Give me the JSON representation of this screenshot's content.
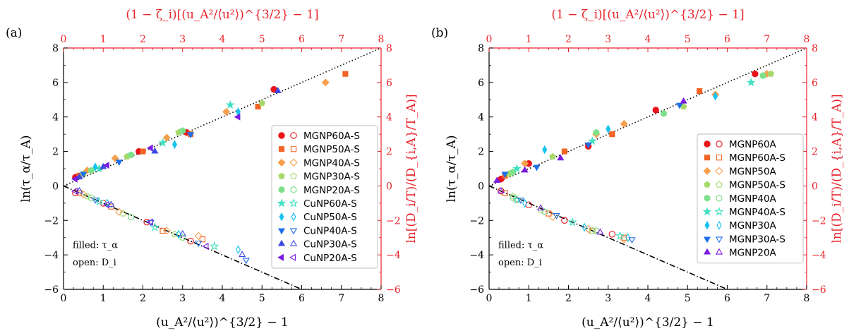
{
  "panels": [
    {
      "panel_label": "(a)",
      "x_label": "(u_A²/⟨u²⟩)^{3/2} − 1",
      "y_label_left": "ln(τ_α/τ_A)",
      "x_label_top": "(1 − ζ_i)[(u_A²/⟨u²⟩)^{3/2} − 1]",
      "y_label_right": "ln[(D_i/T)/(D_{i,A}/T_A)]",
      "annotation_filled": "filled: τ_α",
      "annotation_open": "open: D_i"
    },
    {
      "panel_label": "(b)",
      "x_label": "(u_A²/⟨u²⟩)^{3/2} − 1",
      "y_label_left": "ln(τ_α/τ_A)",
      "x_label_top": "(1 − ζ_i)[(u_A²/⟨u²⟩)^{3/2} − 1]",
      "y_label_right": "ln[(D_i/T)/(D_{i,A}/T_A)]",
      "annotation_filled": "filled: τ_α",
      "annotation_open": "open: D_i"
    }
  ],
  "colors": {
    "red_axis": "#e8232a",
    "black": "#000000",
    "series_palette": [
      "#e8141a",
      "#f26426",
      "#f6a04d",
      "#a6d96a",
      "#7ee08a",
      "#3fe0c0",
      "#16c3f0",
      "#1e6fe8",
      "#3b4ae0",
      "#7b1be0"
    ]
  },
  "chart_data": [
    {
      "type": "scatter",
      "title": "",
      "xlabel": "(u_A²/⟨u²⟩)^{3/2} − 1",
      "ylabel": "ln(τ_α/τ_A)",
      "xlabel_top": "(1 − ζ_i)[(u_A²/⟨u²⟩)^{3/2} − 1]",
      "ylabel_right": "ln[(D_i/T)/(D_{i,A}/T_A)]",
      "xlim": [
        0,
        8
      ],
      "ylim": [
        -6,
        8
      ],
      "x_ticks": [
        0,
        1,
        2,
        3,
        4,
        5,
        6,
        7,
        8
      ],
      "y_ticks": [
        -6,
        -4,
        -2,
        0,
        2,
        4,
        6,
        8
      ],
      "legend_position": "right",
      "reference_lines": [
        {
          "style": "dotted",
          "slope": 1.0
        },
        {
          "style": "dashdot",
          "slope": -1.0
        }
      ],
      "series": [
        {
          "name": "MGNP60A-S",
          "marker": "circle",
          "color": "#e8141a",
          "filled": [
            [
              0.3,
              0.5
            ],
            [
              1.9,
              2.0
            ],
            [
              3.1,
              3.1
            ],
            [
              5.3,
              5.6
            ]
          ],
          "open": [
            [
              0.3,
              -0.4
            ],
            [
              1.0,
              -1.0
            ],
            [
              2.1,
              -2.1
            ],
            [
              3.2,
              -3.2
            ]
          ]
        },
        {
          "name": "MGNP50A-S",
          "marker": "square",
          "color": "#f26426",
          "filled": [
            [
              0.4,
              0.6
            ],
            [
              2.0,
              2.0
            ],
            [
              3.2,
              3.0
            ],
            [
              4.9,
              4.6
            ],
            [
              7.1,
              6.5
            ]
          ],
          "open": [
            [
              0.4,
              -0.4
            ],
            [
              1.2,
              -1.2
            ],
            [
              2.5,
              -2.6
            ],
            [
              3.5,
              -3.1
            ]
          ]
        },
        {
          "name": "MGNP40A-S",
          "marker": "diamond",
          "color": "#f6a04d",
          "filled": [
            [
              0.6,
              0.9
            ],
            [
              1.3,
              1.6
            ],
            [
              2.6,
              2.8
            ],
            [
              4.1,
              4.3
            ],
            [
              6.6,
              6.0
            ]
          ],
          "open": [
            [
              0.5,
              -0.5
            ],
            [
              1.4,
              -1.5
            ],
            [
              2.6,
              -2.6
            ],
            [
              3.4,
              -2.9
            ]
          ]
        },
        {
          "name": "MGNP30A-S",
          "marker": "pentagon",
          "color": "#a6d96a",
          "filled": [
            [
              0.5,
              0.7
            ],
            [
              1.6,
              1.7
            ],
            [
              2.9,
              3.1
            ],
            [
              5.0,
              4.8
            ]
          ],
          "open": [
            [
              0.6,
              -0.6
            ],
            [
              1.5,
              -1.6
            ],
            [
              2.8,
              -2.8
            ]
          ]
        },
        {
          "name": "MGNP20A-S",
          "marker": "hexagon",
          "color": "#7ee08a",
          "filled": [
            [
              0.7,
              0.9
            ],
            [
              1.7,
              1.8
            ],
            [
              3.0,
              3.2
            ]
          ],
          "open": [
            [
              0.7,
              -0.7
            ],
            [
              1.7,
              -1.8
            ],
            [
              3.0,
              -3.0
            ]
          ]
        },
        {
          "name": "CuNP60A-S",
          "marker": "star",
          "color": "#3fe0c0",
          "filled": [
            [
              0.9,
              1.0
            ],
            [
              2.5,
              2.5
            ],
            [
              4.2,
              4.7
            ]
          ],
          "open": [
            [
              0.9,
              -0.9
            ],
            [
              2.3,
              -2.4
            ],
            [
              3.8,
              -3.5
            ]
          ]
        },
        {
          "name": "CuNP50A-S",
          "marker": "thin_diamond",
          "color": "#16c3f0",
          "filled": [
            [
              0.8,
              1.1
            ],
            [
              2.8,
              2.4
            ],
            [
              4.4,
              4.3
            ]
          ],
          "open": [
            [
              1.1,
              -1.0
            ],
            [
              2.9,
              -2.8
            ],
            [
              4.4,
              -3.7
            ]
          ]
        },
        {
          "name": "CuNP40A-S",
          "marker": "triangle_down",
          "color": "#1e6fe8",
          "filled": [
            [
              0.5,
              0.7
            ],
            [
              1.4,
              1.4
            ],
            [
              3.2,
              3.0
            ]
          ],
          "open": [
            [
              0.8,
              -0.8
            ],
            [
              2.2,
              -2.1
            ],
            [
              3.4,
              -3.3
            ],
            [
              4.6,
              -4.3
            ]
          ]
        },
        {
          "name": "CuNP30A-S",
          "marker": "triangle_up",
          "color": "#3b4ae0",
          "filled": [
            [
              0.4,
              0.5
            ],
            [
              1.0,
              1.1
            ],
            [
              2.3,
              2.0
            ],
            [
              5.4,
              5.5
            ]
          ],
          "open": [
            [
              0.4,
              -0.3
            ],
            [
              1.2,
              -1.1
            ],
            [
              3.0,
              -2.8
            ],
            [
              4.5,
              -4.0
            ]
          ]
        },
        {
          "name": "CuNP20A-S",
          "marker": "triangle_left",
          "color": "#7b1be0",
          "filled": [
            [
              0.3,
              0.4
            ],
            [
              1.1,
              1.2
            ],
            [
              2.2,
              2.2
            ],
            [
              4.4,
              4.0
            ]
          ],
          "open": [
            [
              0.3,
              -0.3
            ],
            [
              1.1,
              -1.1
            ],
            [
              2.2,
              -2.1
            ],
            [
              3.6,
              -3.5
            ]
          ]
        }
      ]
    },
    {
      "type": "scatter",
      "title": "",
      "xlabel": "(u_A²/⟨u²⟩)^{3/2} − 1",
      "ylabel": "ln(τ_α/τ_A)",
      "xlabel_top": "(1 − ζ_i)[(u_A²/⟨u²⟩)^{3/2} − 1]",
      "ylabel_right": "ln[(D_i/T)/(D_{i,A}/T_A)]",
      "xlim": [
        0,
        8
      ],
      "ylim": [
        -6,
        8
      ],
      "x_ticks": [
        0,
        1,
        2,
        3,
        4,
        5,
        6,
        7,
        8
      ],
      "y_ticks": [
        -6,
        -4,
        -2,
        0,
        2,
        4,
        6,
        8
      ],
      "legend_position": "right",
      "reference_lines": [
        {
          "style": "dotted",
          "slope": 1.0
        },
        {
          "style": "dashdot",
          "slope": -1.0
        }
      ],
      "series": [
        {
          "name": "MGNP60A",
          "marker": "circle",
          "color": "#e8141a",
          "filled": [
            [
              0.3,
              0.4
            ],
            [
              1.0,
              1.3
            ],
            [
              2.5,
              2.3
            ],
            [
              4.2,
              4.4
            ],
            [
              6.7,
              6.5
            ]
          ],
          "open": [
            [
              0.3,
              -0.3
            ],
            [
              1.0,
              -1.1
            ],
            [
              1.9,
              -2.0
            ],
            [
              3.1,
              -2.8
            ]
          ]
        },
        {
          "name": "MGNP60A-S",
          "marker": "square",
          "color": "#f26426",
          "filled": [
            [
              0.4,
              0.6
            ],
            [
              1.9,
              2.0
            ],
            [
              3.1,
              3.0
            ],
            [
              5.3,
              5.5
            ]
          ],
          "open": [
            [
              0.4,
              -0.4
            ],
            [
              1.5,
              -1.6
            ],
            [
              2.6,
              -2.6
            ],
            [
              3.4,
              -3.0
            ]
          ]
        },
        {
          "name": "MGNP50A",
          "marker": "diamond",
          "color": "#f6a04d",
          "filled": [
            [
              0.9,
              1.3
            ],
            [
              2.7,
              3.0
            ],
            [
              3.4,
              3.6
            ],
            [
              5.7,
              5.3
            ],
            [
              7.0,
              6.5
            ]
          ],
          "open": [
            [
              0.7,
              -0.8
            ],
            [
              1.6,
              -1.8
            ],
            [
              2.5,
              -2.5
            ],
            [
              3.4,
              -3.1
            ]
          ]
        },
        {
          "name": "MGNP50A-S",
          "marker": "pentagon",
          "color": "#a6d96a",
          "filled": [
            [
              0.5,
              0.7
            ],
            [
              1.6,
              1.7
            ],
            [
              4.9,
              4.6
            ],
            [
              7.1,
              6.5
            ]
          ],
          "open": [
            [
              0.6,
              -0.6
            ],
            [
              1.3,
              -1.4
            ],
            [
              2.6,
              -2.6
            ]
          ]
        },
        {
          "name": "MGNP40A",
          "marker": "hexagon",
          "color": "#7ee08a",
          "filled": [
            [
              0.6,
              0.8
            ],
            [
              2.7,
              3.1
            ],
            [
              4.4,
              4.2
            ],
            [
              6.9,
              6.4
            ]
          ],
          "open": [
            [
              0.6,
              -0.7
            ],
            [
              1.4,
              -1.5
            ],
            [
              2.7,
              -2.6
            ]
          ]
        },
        {
          "name": "MGNP40A-S",
          "marker": "star",
          "color": "#3fe0c0",
          "filled": [
            [
              0.7,
              1.0
            ],
            [
              2.6,
              2.6
            ],
            [
              6.6,
              6.0
            ]
          ],
          "open": [
            [
              0.7,
              -0.8
            ],
            [
              2.1,
              -2.1
            ],
            [
              3.3,
              -2.9
            ]
          ]
        },
        {
          "name": "MGNP30A",
          "marker": "thin_diamond",
          "color": "#16c3f0",
          "filled": [
            [
              1.4,
              2.1
            ],
            [
              3.0,
              3.3
            ],
            [
              5.7,
              5.2
            ]
          ],
          "open": [
            [
              0.9,
              -1.0
            ],
            [
              2.4,
              -2.4
            ],
            [
              3.5,
              -3.0
            ]
          ]
        },
        {
          "name": "MGNP30A-S",
          "marker": "triangle_down",
          "color": "#1e6fe8",
          "filled": [
            [
              0.4,
              0.7
            ],
            [
              1.2,
              1.1
            ],
            [
              2.5,
              2.4
            ],
            [
              4.8,
              4.7
            ]
          ],
          "open": [
            [
              0.8,
              -0.8
            ],
            [
              1.7,
              -1.7
            ],
            [
              3.6,
              -3.1
            ]
          ]
        },
        {
          "name": "MGNP20A",
          "marker": "triangle_up",
          "color": "#7b1be0",
          "filled": [
            [
              0.2,
              0.3
            ],
            [
              0.9,
              0.9
            ],
            [
              1.8,
              1.6
            ],
            [
              4.9,
              4.9
            ]
          ],
          "open": [
            [
              0.3,
              -0.3
            ],
            [
              1.3,
              -1.3
            ],
            [
              2.8,
              -2.7
            ]
          ]
        }
      ]
    }
  ]
}
